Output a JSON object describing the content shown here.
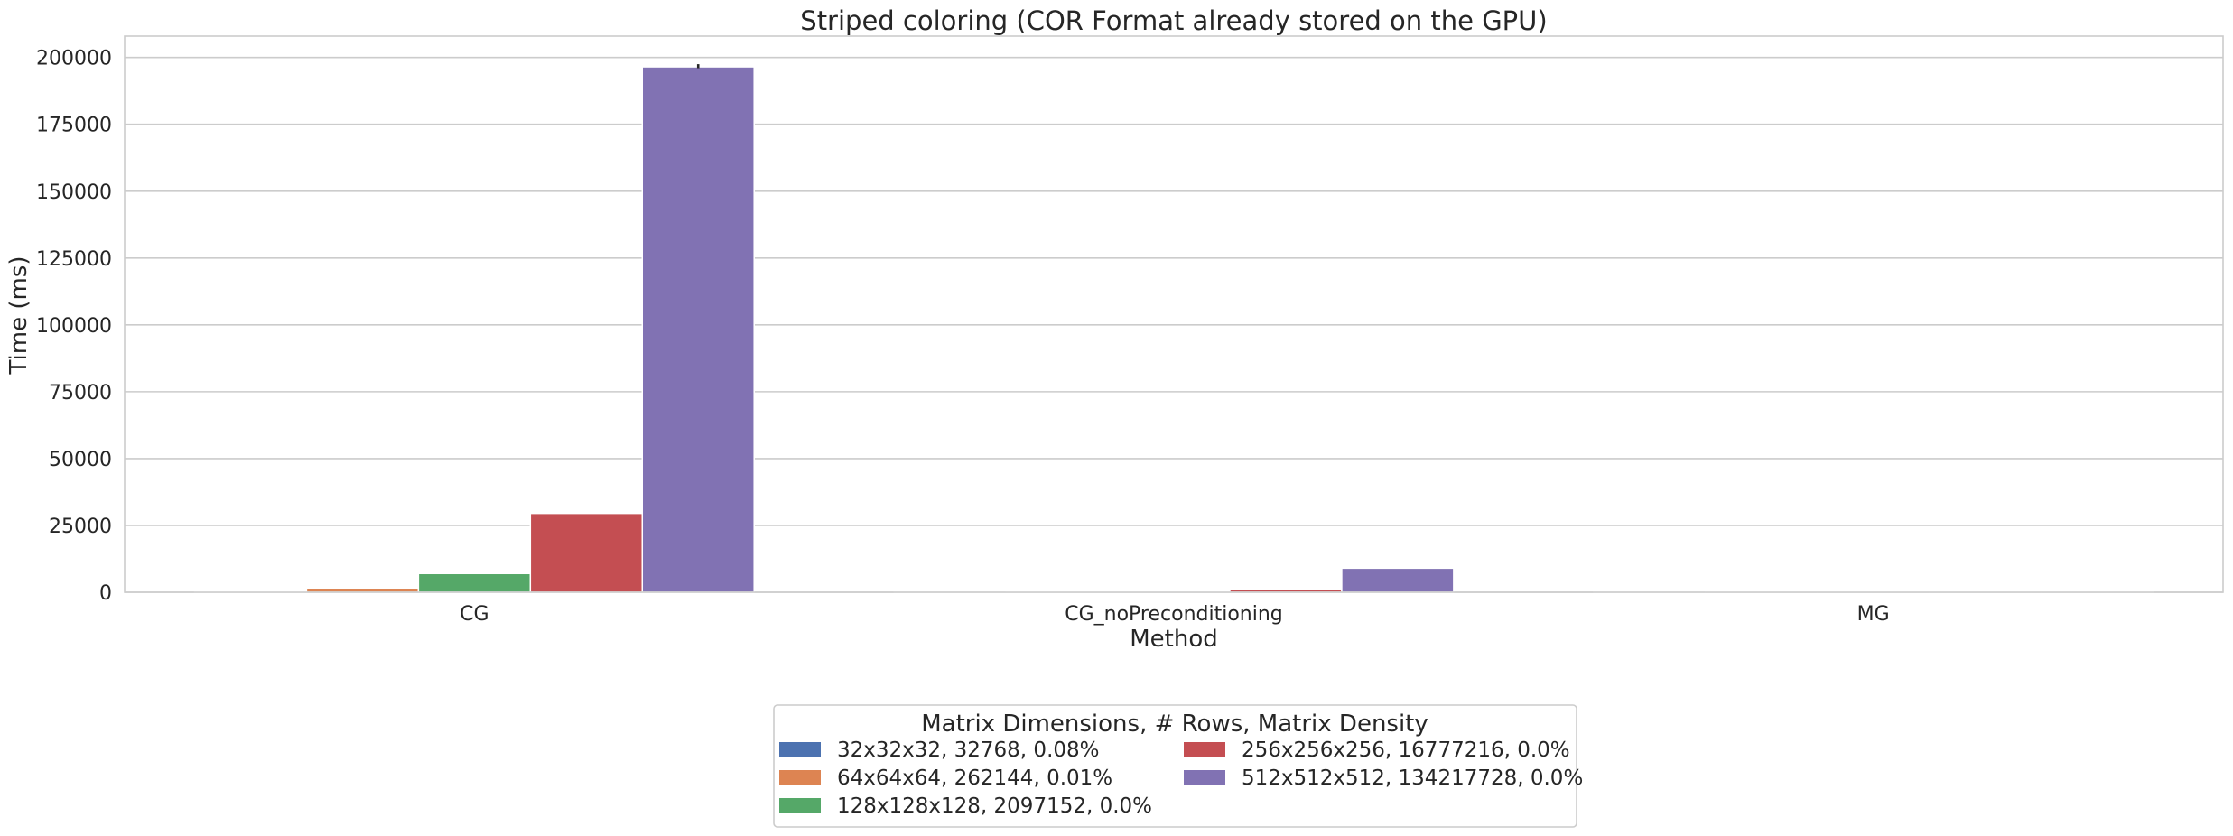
{
  "chart_data": {
    "type": "bar",
    "title": "Striped coloring (COR Format already stored on the GPU)",
    "xlabel": "Method",
    "ylabel": "Time (ms)",
    "categories": [
      "CG",
      "CG_noPreconditioning",
      "MG"
    ],
    "ylim": [
      0,
      208000
    ],
    "yticks": [
      0,
      25000,
      50000,
      75000,
      100000,
      125000,
      150000,
      175000,
      200000
    ],
    "grid": "horizontal",
    "legend": {
      "title": "Matrix Dimensions, # Rows, Matrix Density",
      "placement": "bottom-center, below plot",
      "columns": 2
    },
    "series": [
      {
        "name": "32x32x32, 32768, 0.08%",
        "color": "#4c72b0",
        "values": [
          70,
          20,
          15
        ]
      },
      {
        "name": "64x64x64, 262144, 0.01%",
        "color": "#dd8452",
        "values": [
          1600,
          350,
          60
        ]
      },
      {
        "name": "128x128x128, 2097152, 0.0%",
        "color": "#55a868",
        "values": [
          7000,
          250,
          150
        ]
      },
      {
        "name": "256x256x256, 16777216, 0.0%",
        "color": "#c44e52",
        "values": [
          29500,
          1200,
          350
        ]
      },
      {
        "name": "512x512x512, 134217728, 0.0%",
        "color": "#8172b3",
        "values": [
          196500,
          9000,
          500
        ]
      }
    ],
    "error_bars": [
      {
        "series": "512x512x512, 134217728, 0.0%",
        "category": "CG",
        "low": 196000,
        "high": 197500
      }
    ]
  }
}
